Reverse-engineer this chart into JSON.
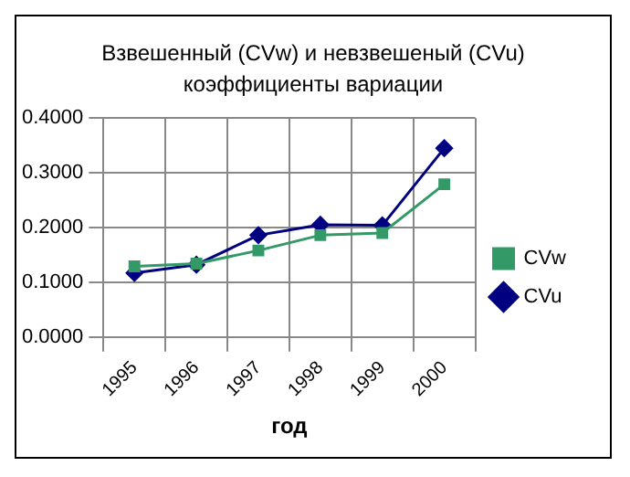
{
  "chart_data": {
    "type": "line",
    "title": "Взвешенный (CVw) и невзвешеный (CVu) коэффициенты вариации",
    "xlabel": "год",
    "categories": [
      "1995",
      "1996",
      "1997",
      "1998",
      "1999",
      "2000"
    ],
    "series": [
      {
        "name": "CVu",
        "color": "#000080",
        "marker": "diamond",
        "values": [
          0.117,
          0.132,
          0.186,
          0.205,
          0.204,
          0.345
        ]
      },
      {
        "name": "CVw",
        "color": "#339966",
        "marker": "square",
        "values": [
          0.129,
          0.134,
          0.158,
          0.186,
          0.19,
          0.279
        ]
      }
    ],
    "ylim": [
      0,
      0.4
    ],
    "yticks": [
      {
        "value": 0,
        "label": "0.0000"
      },
      {
        "value": 0.1,
        "label": "0.1000"
      },
      {
        "value": 0.2,
        "label": "0.2000"
      },
      {
        "value": 0.3,
        "label": "0.3000"
      },
      {
        "value": 0.4,
        "label": "0.4000"
      }
    ],
    "grid": true,
    "legend": "right"
  }
}
